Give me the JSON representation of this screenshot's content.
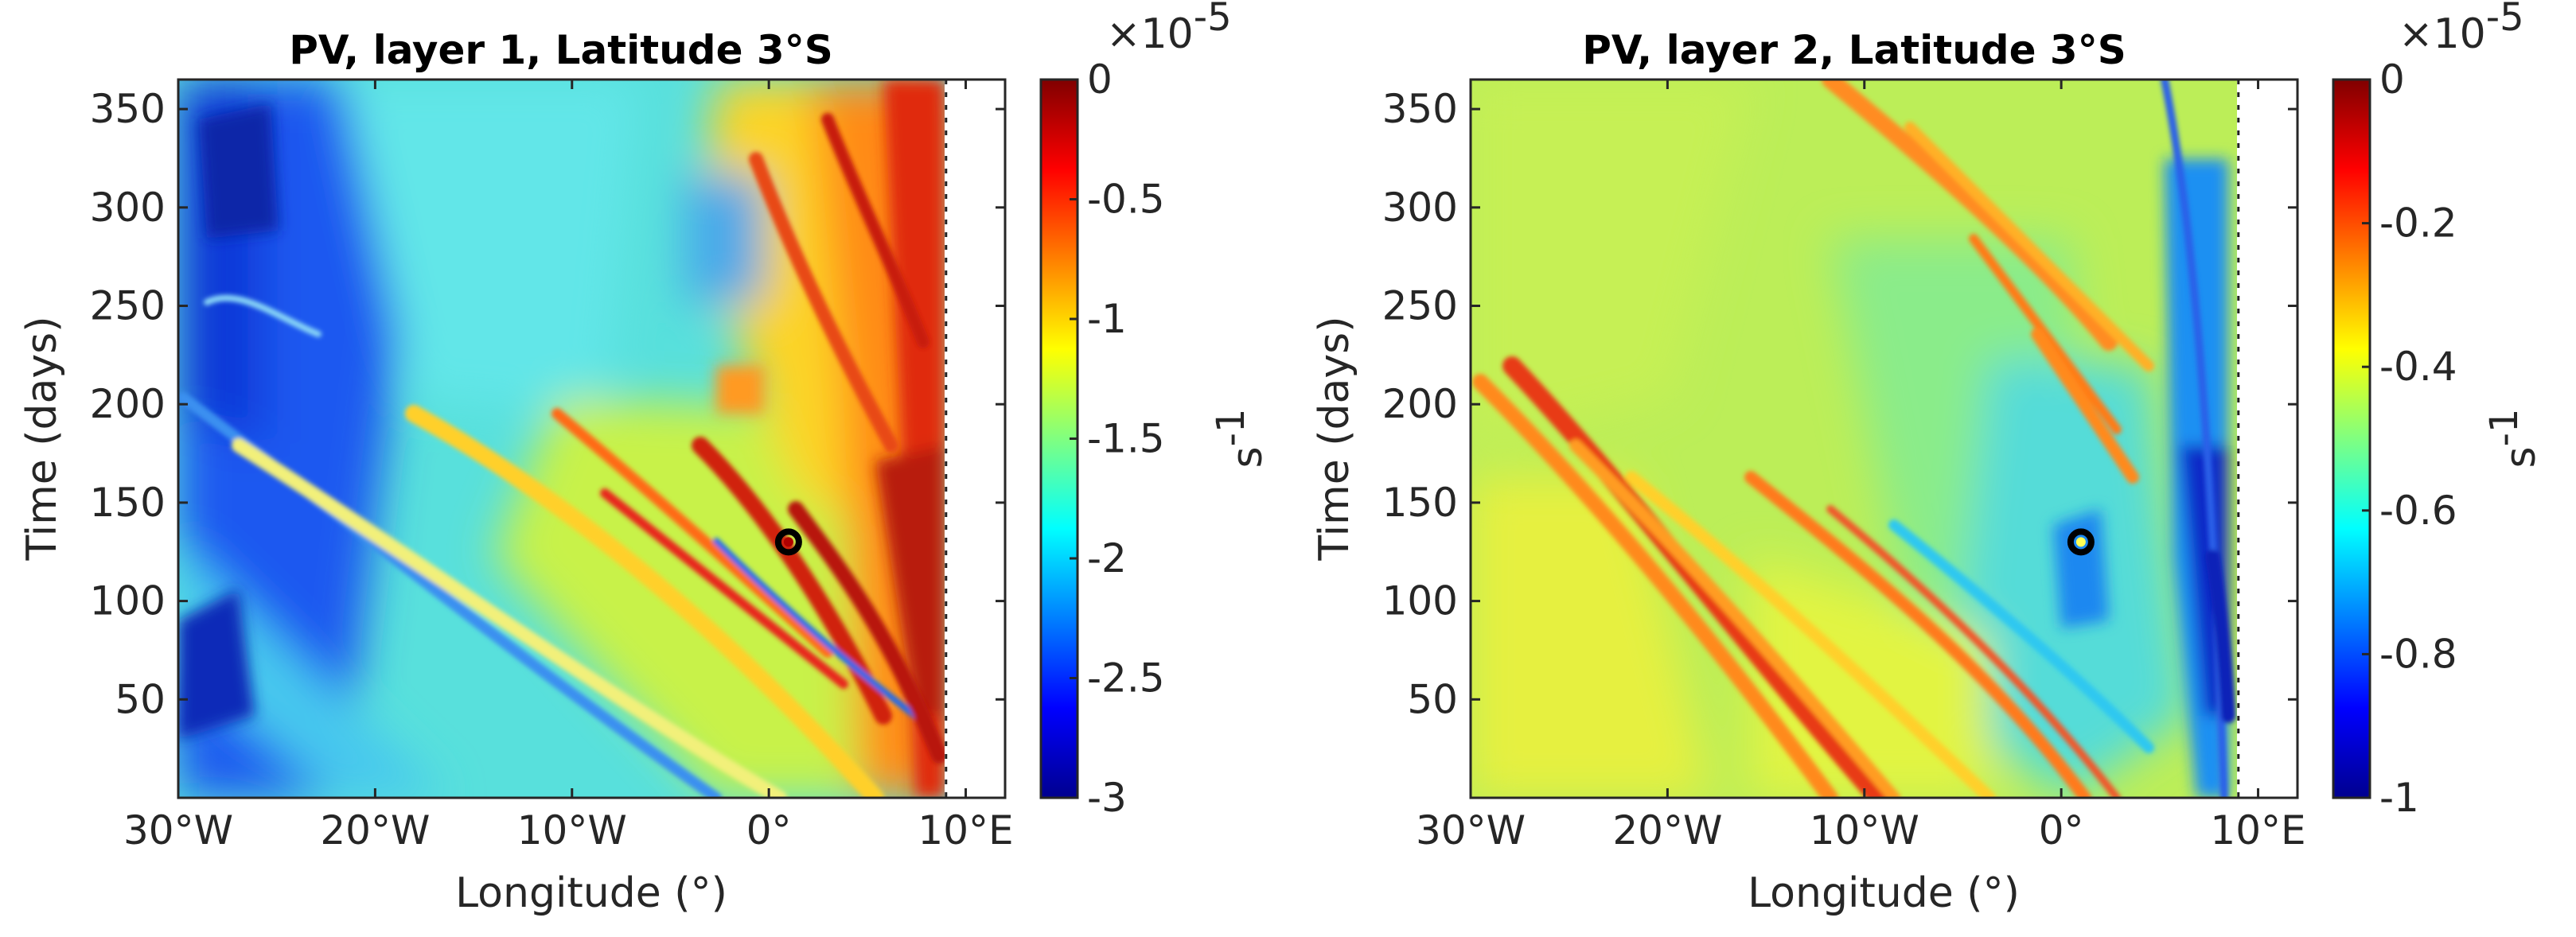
{
  "chart_data": [
    {
      "type": "heatmap",
      "title": "PV, layer 1, Latitude 3°S",
      "xlabel": "Longitude (°)",
      "ylabel": "Time (days)",
      "xlim": [
        -30,
        12
      ],
      "ylim": [
        0,
        365
      ],
      "xticks": [
        -30,
        -20,
        -10,
        0,
        10
      ],
      "xtick_labels": [
        "30°W",
        "20°W",
        "10°W",
        "0°",
        "10°E"
      ],
      "yticks": [
        50,
        100,
        150,
        200,
        250,
        300,
        350
      ],
      "ytick_labels": [
        "50",
        "100",
        "150",
        "200",
        "250",
        "300",
        "350"
      ],
      "colorbar": {
        "label": "s",
        "label_exponent": "-1",
        "scale_prefix": "×10",
        "scale_exponent": "-5",
        "range": [
          -3,
          0
        ],
        "ticks": [
          -3,
          -2.5,
          -2,
          -1.5,
          -1,
          -0.5,
          0
        ],
        "tick_labels": [
          "-3",
          "-2.5",
          "-2",
          "-1.5",
          "-1",
          "-0.5",
          "0"
        ],
        "colormap": "jet"
      },
      "marker": {
        "longitude": 1,
        "time": 130,
        "ring_color": "#000000",
        "center_color": "#b00000"
      },
      "land_boundary_longitude": 9
    },
    {
      "type": "heatmap",
      "title": "PV, layer 2, Latitude 3°S",
      "xlabel": "Longitude (°)",
      "ylabel": "Time (days)",
      "xlim": [
        -30,
        12
      ],
      "ylim": [
        0,
        365
      ],
      "xticks": [
        -30,
        -20,
        -10,
        0,
        10
      ],
      "xtick_labels": [
        "30°W",
        "20°W",
        "10°W",
        "0°",
        "10°E"
      ],
      "yticks": [
        50,
        100,
        150,
        200,
        250,
        300,
        350
      ],
      "ytick_labels": [
        "50",
        "100",
        "150",
        "200",
        "250",
        "300",
        "350"
      ],
      "colorbar": {
        "label": "s",
        "label_exponent": "-1",
        "scale_prefix": "×10",
        "scale_exponent": "-5",
        "range": [
          -1,
          0
        ],
        "ticks": [
          -1,
          -0.8,
          -0.6,
          -0.4,
          -0.2,
          0
        ],
        "tick_labels": [
          "-1",
          "-0.8",
          "-0.6",
          "-0.4",
          "-0.2",
          "0"
        ],
        "colormap": "jet"
      },
      "marker": {
        "longitude": 1,
        "time": 130,
        "ring_color": "#000000",
        "center_color": "#ffff55"
      },
      "land_boundary_longitude": 9
    }
  ]
}
